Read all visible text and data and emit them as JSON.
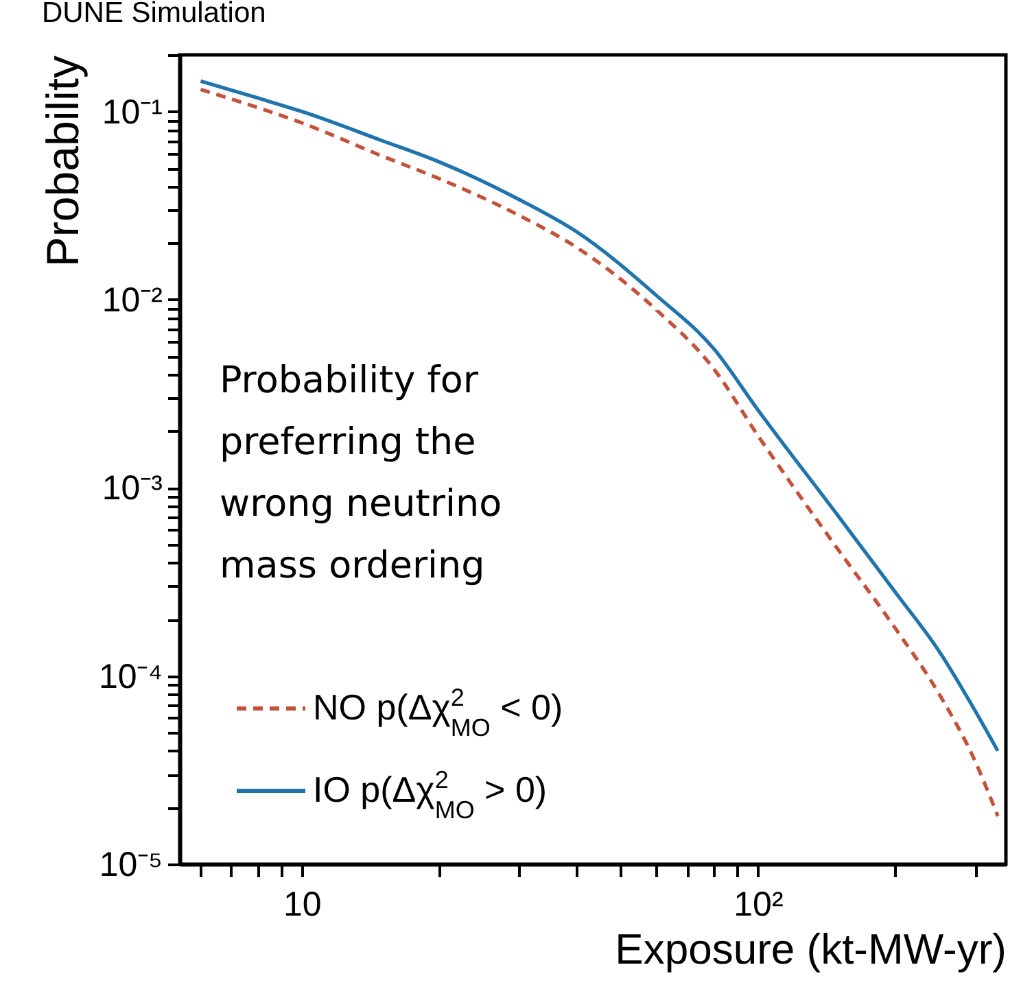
{
  "chart_data": {
    "type": "line",
    "title": "DUNE Simulation",
    "xlabel": "Exposure (kt-MW-yr)",
    "ylabel": "Probability",
    "log": "xy",
    "grid": false,
    "legend": "bottom left",
    "marker": "none",
    "annotations": [
      "Probability for preferring the wrong neutrino mass ordering"
    ],
    "xlim": [
      5.4,
      350
    ],
    "ylim": [
      1e-05,
      0.2
    ],
    "xticks": [
      {
        "value": 6,
        "label": null
      },
      {
        "value": 7,
        "label": null
      },
      {
        "value": 8,
        "label": null
      },
      {
        "value": 9,
        "label": null
      },
      10,
      {
        "value": 20,
        "label": null
      },
      {
        "value": 30,
        "label": null
      },
      {
        "value": 40,
        "label": null
      },
      {
        "value": 50,
        "label": null
      },
      {
        "value": 60,
        "label": null
      },
      {
        "value": 70,
        "label": null
      },
      {
        "value": 80,
        "label": null
      },
      {
        "value": 90,
        "label": null
      },
      {
        "value": 100,
        "label": "10²"
      },
      {
        "value": 200,
        "label": null
      },
      {
        "value": 300,
        "label": null
      }
    ],
    "yticks": [
      {
        "value": 1e-05,
        "label": "10⁻⁵"
      },
      {
        "value": 2e-05,
        "label": null
      },
      {
        "value": 3e-05,
        "label": null
      },
      {
        "value": 4e-05,
        "label": null
      },
      {
        "value": 5e-05,
        "label": null
      },
      {
        "value": 6e-05,
        "label": null
      },
      {
        "value": 7e-05,
        "label": null
      },
      {
        "value": 8e-05,
        "label": null
      },
      {
        "value": 9e-05,
        "label": null
      },
      {
        "value": 0.0001,
        "label": "10⁻⁴"
      },
      {
        "value": 0.0002,
        "label": null
      },
      {
        "value": 0.0003,
        "label": null
      },
      {
        "value": 0.0004,
        "label": null
      },
      {
        "value": 0.0005,
        "label": null
      },
      {
        "value": 0.0006,
        "label": null
      },
      {
        "value": 0.0007,
        "label": null
      },
      {
        "value": 0.0008,
        "label": null
      },
      {
        "value": 0.0009,
        "label": null
      },
      {
        "value": 0.001,
        "label": "10⁻³"
      },
      {
        "value": 0.002,
        "label": null
      },
      {
        "value": 0.003,
        "label": null
      },
      {
        "value": 0.004,
        "label": null
      },
      {
        "value": 0.005,
        "label": null
      },
      {
        "value": 0.006,
        "label": null
      },
      {
        "value": 0.007,
        "label": null
      },
      {
        "value": 0.008,
        "label": null
      },
      {
        "value": 0.009,
        "label": null
      },
      {
        "value": 0.01,
        "label": "10⁻²"
      },
      {
        "value": 0.02,
        "label": null
      },
      {
        "value": 0.03,
        "label": null
      },
      {
        "value": 0.04,
        "label": null
      },
      {
        "value": 0.05,
        "label": null
      },
      {
        "value": 0.06,
        "label": null
      },
      {
        "value": 0.07,
        "label": null
      },
      {
        "value": 0.08,
        "label": null
      },
      {
        "value": 0.09,
        "label": null
      },
      {
        "value": 0.1,
        "label": "10⁻¹"
      },
      {
        "value": 0.2,
        "label": null
      }
    ],
    "x": [
      6,
      8,
      10,
      15,
      20,
      30,
      40,
      60,
      80,
      100,
      150,
      200,
      250,
      300,
      336
    ],
    "series": [
      {
        "name": "NO p(Δχ$^{2}$$_{MO}$ < 0)",
        "color": "#c4513a",
        "line_style": "dashed",
        "values": [
          0.131,
          0.105,
          0.087,
          0.058,
          0.044,
          0.028,
          0.019,
          0.0088,
          0.0043,
          0.0019,
          0.00047,
          0.00018,
          8e-05,
          3.5e-05,
          1.8e-05
        ]
      },
      {
        "name": "IO p(Δχ$^{2}$$_{MO}$ > 0)",
        "color": "#1f74ad",
        "line_style": "solid",
        "values": [
          0.145,
          0.118,
          0.1,
          0.07,
          0.054,
          0.034,
          0.023,
          0.0105,
          0.0055,
          0.0026,
          0.00071,
          0.00028,
          0.000135,
          6.5e-05,
          4e-05
        ]
      }
    ]
  }
}
